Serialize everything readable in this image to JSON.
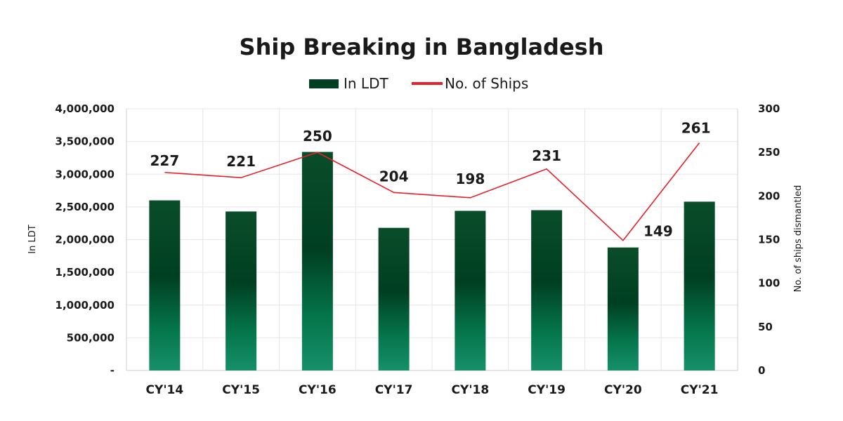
{
  "chart_data": {
    "type": "bar",
    "title": "Ship Breaking in Bangladesh",
    "categories": [
      "CY'14",
      "CY'15",
      "CY'16",
      "CY'17",
      "CY'18",
      "CY'19",
      "CY'20",
      "CY'21"
    ],
    "series": [
      {
        "name": "In LDT",
        "type": "bar",
        "axis": "left",
        "color": "#00613a",
        "values": [
          2600000,
          2430000,
          3340000,
          2180000,
          2440000,
          2450000,
          1880000,
          2580000
        ]
      },
      {
        "name": "No. of Ships",
        "type": "line",
        "axis": "right",
        "color": "#e8202a",
        "values": [
          227,
          221,
          250,
          204,
          198,
          231,
          149,
          261
        ]
      }
    ],
    "ylabel": "In LDT",
    "y2label": "No. of ships dismantled",
    "ylim": [
      0,
      4000000
    ],
    "y2lim": [
      0,
      300
    ],
    "yticks": [
      "-",
      "500,000",
      "1,000,000",
      "1,500,000",
      "2,000,000",
      "2,500,000",
      "3,000,000",
      "3,500,000",
      "4,000,000"
    ],
    "y2ticks": [
      "0",
      "50",
      "100",
      "150",
      "200",
      "250",
      "300"
    ],
    "legend_position": "top-center",
    "grid": true
  }
}
